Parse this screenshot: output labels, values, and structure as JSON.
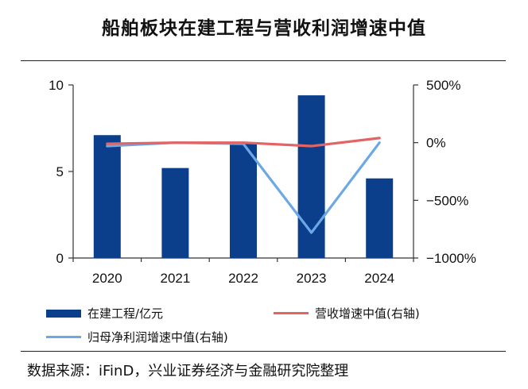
{
  "title": "船舶板块在建工程与营收利润增速中值",
  "source": "数据来源：iFinD，兴业证券经济与金融研究院整理",
  "colors": {
    "bar": "#0b3f8c",
    "revenue_line": "#e36464",
    "profit_line": "#6da8e6"
  },
  "chart_data": {
    "type": "bar",
    "categories": [
      "2020",
      "2021",
      "2022",
      "2023",
      "2024"
    ],
    "series": [
      {
        "name": "在建工程/亿元",
        "type": "bar",
        "axis": "left",
        "values": [
          7.1,
          5.2,
          6.6,
          9.4,
          4.6
        ]
      },
      {
        "name": "营收增速中值(右轴)",
        "type": "line",
        "axis": "right",
        "values": [
          -0.1,
          0.0,
          0.0,
          -0.3,
          0.4
        ]
      },
      {
        "name": "归母净利润增速中值(右轴)",
        "type": "line",
        "axis": "right",
        "values": [
          -0.3,
          0.0,
          -0.1,
          -7.8,
          0.0
        ]
      }
    ],
    "ylim_left": [
      0,
      10
    ],
    "yticks_left": [
      "10",
      "5",
      "0"
    ],
    "ylim_right": [
      -10,
      5
    ],
    "yticks_right": [
      "500%",
      "0%",
      "−500%",
      "−1000%"
    ],
    "grid": false,
    "legend_position": "bottom"
  }
}
